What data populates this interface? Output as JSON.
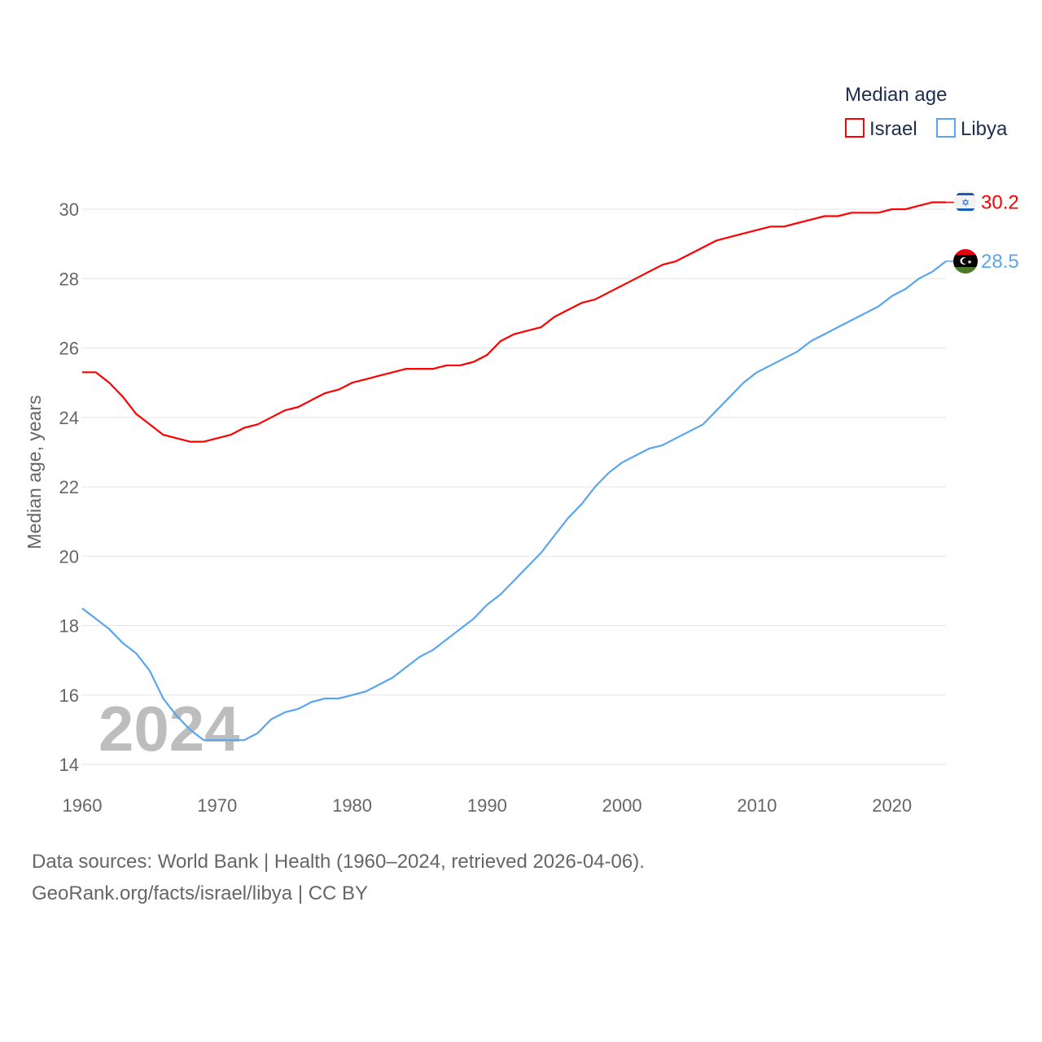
{
  "chart_data": {
    "type": "line",
    "title": "",
    "xlabel": "",
    "ylabel": "Median age, years",
    "xlim": [
      1960,
      2024
    ],
    "ylim": [
      14,
      30
    ],
    "x_ticks": [
      1960,
      1970,
      1980,
      1990,
      2000,
      2010,
      2020
    ],
    "y_ticks": [
      14,
      16,
      18,
      20,
      22,
      24,
      26,
      28,
      30
    ],
    "grid": true,
    "legend": {
      "title": "Median age",
      "placement": "top-right"
    },
    "year_watermark": "2024",
    "x": [
      1960,
      1961,
      1962,
      1963,
      1964,
      1965,
      1966,
      1967,
      1968,
      1969,
      1970,
      1971,
      1972,
      1973,
      1974,
      1975,
      1976,
      1977,
      1978,
      1979,
      1980,
      1981,
      1982,
      1983,
      1984,
      1985,
      1986,
      1987,
      1988,
      1989,
      1990,
      1991,
      1992,
      1993,
      1994,
      1995,
      1996,
      1997,
      1998,
      1999,
      2000,
      2001,
      2002,
      2003,
      2004,
      2005,
      2006,
      2007,
      2008,
      2009,
      2010,
      2011,
      2012,
      2013,
      2014,
      2015,
      2016,
      2017,
      2018,
      2019,
      2020,
      2021,
      2022,
      2023,
      2024
    ],
    "series": [
      {
        "name": "Israel",
        "color": "#ff0000",
        "end_label": "30.2",
        "flag": "israel-flag",
        "values": [
          25.3,
          25.3,
          25.0,
          24.6,
          24.1,
          23.8,
          23.5,
          23.4,
          23.3,
          23.3,
          23.4,
          23.5,
          23.7,
          23.8,
          24.0,
          24.2,
          24.3,
          24.5,
          24.7,
          24.8,
          25.0,
          25.1,
          25.2,
          25.3,
          25.4,
          25.4,
          25.4,
          25.5,
          25.5,
          25.6,
          25.8,
          26.2,
          26.4,
          26.5,
          26.6,
          26.9,
          27.1,
          27.3,
          27.4,
          27.6,
          27.8,
          28.0,
          28.2,
          28.4,
          28.5,
          28.7,
          28.9,
          29.1,
          29.2,
          29.3,
          29.4,
          29.5,
          29.5,
          29.6,
          29.7,
          29.8,
          29.8,
          29.9,
          29.9,
          29.9,
          30.0,
          30.0,
          30.1,
          30.2,
          30.2
        ]
      },
      {
        "name": "Libya",
        "color": "#5aa5ee",
        "end_label": "28.5",
        "flag": "libya-flag",
        "values": [
          18.5,
          18.2,
          17.9,
          17.5,
          17.2,
          16.7,
          15.9,
          15.4,
          15.0,
          14.7,
          14.7,
          14.7,
          14.7,
          14.9,
          15.3,
          15.5,
          15.6,
          15.8,
          15.9,
          15.9,
          16.0,
          16.1,
          16.3,
          16.5,
          16.8,
          17.1,
          17.3,
          17.6,
          17.9,
          18.2,
          18.6,
          18.9,
          19.3,
          19.7,
          20.1,
          20.6,
          21.1,
          21.5,
          22.0,
          22.4,
          22.7,
          22.9,
          23.1,
          23.2,
          23.4,
          23.6,
          23.8,
          24.2,
          24.6,
          25.0,
          25.3,
          25.5,
          25.7,
          25.9,
          26.2,
          26.4,
          26.6,
          26.8,
          27.0,
          27.2,
          27.5,
          27.7,
          28.0,
          28.2,
          28.5
        ]
      }
    ]
  },
  "footer": {
    "source_line": "Data sources: World Bank | Health (1960–2024, retrieved 2026-04-06).",
    "credit_line": "GeoRank.org/facts/israel/libya | CC BY"
  }
}
